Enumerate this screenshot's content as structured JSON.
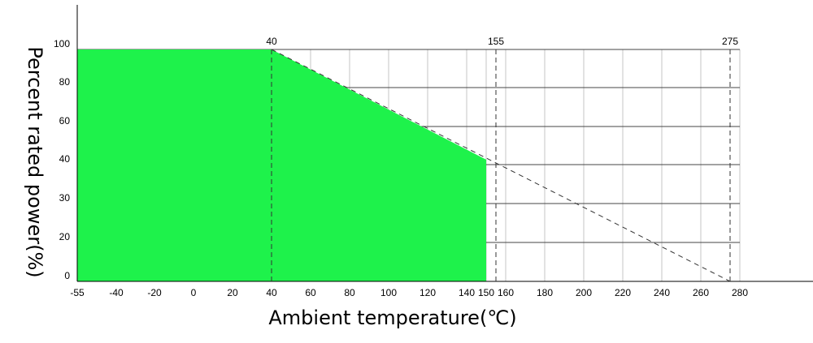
{
  "chart_data": {
    "type": "area",
    "title": "",
    "xlabel": "Ambient temperature(℃)",
    "ylabel": "Percent rated power(%)",
    "x_ticks": [
      "-55",
      "-40",
      "-20",
      "0",
      "20",
      "40",
      "60",
      "80",
      "100",
      "120",
      "140",
      "150",
      "160",
      "180",
      "200",
      "220",
      "240",
      "260",
      "280"
    ],
    "y_ticks": [
      "0",
      "20",
      "30",
      "40",
      "60",
      "80",
      "100"
    ],
    "annotations": [
      "40",
      "155",
      "275"
    ],
    "series": [
      {
        "points": [
          {
            "x": "-55",
            "y": "100"
          },
          {
            "x": "40",
            "y": "100"
          },
          {
            "x": "155",
            "y": "40"
          },
          {
            "x": "275",
            "y": "0"
          }
        ]
      }
    ],
    "fill_to": "150",
    "fill_color": "#1ef24b",
    "grid": true
  }
}
